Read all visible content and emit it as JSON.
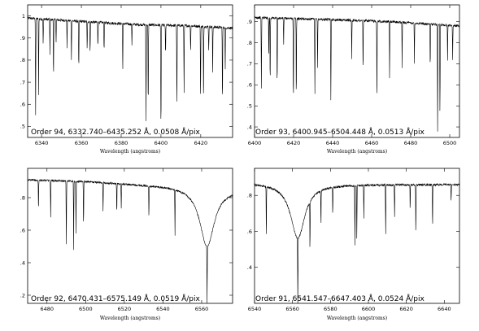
{
  "chart_data": [
    {
      "type": "line",
      "annotation": "Order 94, 6332.740–6435.252 Å, 0.0508 Å/pix",
      "xlabel": "Wavelength (angstroms)",
      "ylabel": "",
      "xlim": [
        6333,
        6436
      ],
      "ylim": [
        0.45,
        1.05
      ],
      "xticks": [
        6340,
        6360,
        6380,
        6400,
        6420
      ],
      "xtick_labels": [
        "6340",
        "6360",
        "6380",
        "6400",
        "6420"
      ],
      "yticks": [
        0.5,
        0.6,
        0.7,
        0.8,
        0.9,
        1.0
      ],
      "ytick_labels": [
        ".5",
        ".6",
        ".7",
        ".8",
        ".9",
        "1"
      ],
      "continuum": [
        [
          6333,
          0.99
        ],
        [
          6360,
          0.975
        ],
        [
          6390,
          0.96
        ],
        [
          6415,
          0.955
        ],
        [
          6436,
          0.945
        ]
      ],
      "lines": [
        [
          6337,
          0.55
        ],
        [
          6338.5,
          0.64
        ],
        [
          6340.8,
          0.87
        ],
        [
          6344.2,
          0.82
        ],
        [
          6346,
          0.72
        ],
        [
          6347.3,
          0.88
        ],
        [
          6352.8,
          0.85
        ],
        [
          6355,
          0.79
        ],
        [
          6358.7,
          0.75
        ],
        [
          6362.9,
          0.85
        ],
        [
          6364.4,
          0.83
        ],
        [
          6368.3,
          0.86
        ],
        [
          6371.4,
          0.84
        ],
        [
          6380.8,
          0.74
        ],
        [
          6385.4,
          0.86
        ],
        [
          6392.5,
          0.52
        ],
        [
          6393.6,
          0.58
        ],
        [
          6400,
          0.46
        ],
        [
          6402.3,
          0.82
        ],
        [
          6408,
          0.58
        ],
        [
          6411.6,
          0.64
        ],
        [
          6414.9,
          0.84
        ],
        [
          6419.9,
          0.62
        ],
        [
          6421.4,
          0.6
        ],
        [
          6424,
          0.84
        ],
        [
          6426,
          0.72
        ],
        [
          6430.9,
          0.6
        ],
        [
          6432.3,
          0.74
        ]
      ]
    },
    {
      "type": "line",
      "annotation": "Order 93, 6400.945–6504.448 Å, 0.0513 Å/pix",
      "xlabel": "Wavelength (angstroms)",
      "ylabel": "",
      "xlim": [
        6400,
        6505
      ],
      "ylim": [
        0.35,
        0.98
      ],
      "xticks": [
        6400,
        6420,
        6440,
        6460,
        6480,
        6500
      ],
      "xtick_labels": [
        "6400",
        "6420",
        "6440",
        "6460",
        "6480",
        "6500"
      ],
      "yticks": [
        0.4,
        0.5,
        0.6,
        0.7,
        0.8,
        0.9
      ],
      "ytick_labels": [
        ".4",
        ".5",
        ".6",
        ".7",
        ".8",
        ".9"
      ],
      "continuum": [
        [
          6400,
          0.92
        ],
        [
          6440,
          0.91
        ],
        [
          6470,
          0.9
        ],
        [
          6505,
          0.88
        ]
      ],
      "lines": [
        [
          6403.5,
          0.58
        ],
        [
          6407.3,
          0.72
        ],
        [
          6408,
          0.6
        ],
        [
          6411.6,
          0.58
        ],
        [
          6414.9,
          0.78
        ],
        [
          6419.9,
          0.5
        ],
        [
          6421.4,
          0.52
        ],
        [
          6430.9,
          0.55
        ],
        [
          6432.3,
          0.68
        ],
        [
          6439.1,
          0.52
        ],
        [
          6449.8,
          0.72
        ],
        [
          6455.6,
          0.66
        ],
        [
          6462.7,
          0.5
        ],
        [
          6469.2,
          0.63
        ],
        [
          6475.6,
          0.68
        ],
        [
          6481.9,
          0.7
        ],
        [
          6490,
          0.68
        ],
        [
          6493.8,
          0.38
        ],
        [
          6495,
          0.45
        ],
        [
          6498.9,
          0.7
        ],
        [
          6501.5,
          0.72
        ]
      ]
    },
    {
      "type": "line",
      "annotation": "Order 92, 6470.431–6575.149 Å, 0.0519 Å/pix",
      "xlabel": "Wavelength (angstroms)",
      "ylabel": "",
      "xlim": [
        6470,
        6576
      ],
      "ylim": [
        0.15,
        0.98
      ],
      "xticks": [
        6480,
        6500,
        6520,
        6540,
        6560
      ],
      "xtick_labels": [
        "6480",
        "6500",
        "6520",
        "6540",
        "6560"
      ],
      "yticks": [
        0.2,
        0.4,
        0.6,
        0.8
      ],
      "ytick_labels": [
        ".2",
        ".4",
        ".6",
        ".8"
      ],
      "continuum": [
        [
          6470,
          0.91
        ],
        [
          6500,
          0.9
        ],
        [
          6530,
          0.88
        ],
        [
          6550,
          0.87
        ],
        [
          6576,
          0.85
        ]
      ],
      "lines": [
        [
          6475.6,
          0.72
        ],
        [
          6481.9,
          0.68
        ],
        [
          6490,
          0.5
        ],
        [
          6493.8,
          0.48
        ],
        [
          6495,
          0.56
        ],
        [
          6498.9,
          0.62
        ],
        [
          6509,
          0.72
        ],
        [
          6516.1,
          0.7
        ],
        [
          6518.4,
          0.74
        ],
        [
          6532.7,
          0.68
        ],
        [
          6546.2,
          0.58
        ],
        [
          6562.8,
          0.16
        ]
      ],
      "halpha_wing": {
        "center": 6562.8,
        "depth": 0.42,
        "width": 4.5
      }
    },
    {
      "type": "line",
      "annotation": "Order 91, 6541.547–6647.403 Å, 0.0524 Å/pix",
      "xlabel": "Wavelength (angstroms)",
      "ylabel": "",
      "xlim": [
        6540,
        6648
      ],
      "ylim": [
        0.2,
        0.95
      ],
      "xticks": [
        6540,
        6560,
        6580,
        6600,
        6620,
        6640
      ],
      "xtick_labels": [
        "6540",
        "6560",
        "6580",
        "6600",
        "6620",
        "6640"
      ],
      "yticks": [
        0.4,
        0.6,
        0.8
      ],
      "ytick_labels": [
        ".4",
        ".6",
        ".8"
      ],
      "continuum": [
        [
          6540,
          0.87
        ],
        [
          6580,
          0.86
        ],
        [
          6620,
          0.86
        ],
        [
          6648,
          0.86
        ]
      ],
      "lines": [
        [
          6546.2,
          0.57
        ],
        [
          6562.8,
          0.22
        ],
        [
          6569.2,
          0.55
        ],
        [
          6575,
          0.66
        ],
        [
          6581.2,
          0.7
        ],
        [
          6592.9,
          0.52
        ],
        [
          6593.9,
          0.56
        ],
        [
          6597.6,
          0.68
        ],
        [
          6609.1,
          0.58
        ],
        [
          6613.8,
          0.68
        ],
        [
          6622,
          0.72
        ],
        [
          6625,
          0.58
        ],
        [
          6633.8,
          0.62
        ],
        [
          6643.6,
          0.76
        ]
      ],
      "halpha_wing": {
        "center": 6562.8,
        "depth": 0.35,
        "width": 4.5
      }
    }
  ]
}
